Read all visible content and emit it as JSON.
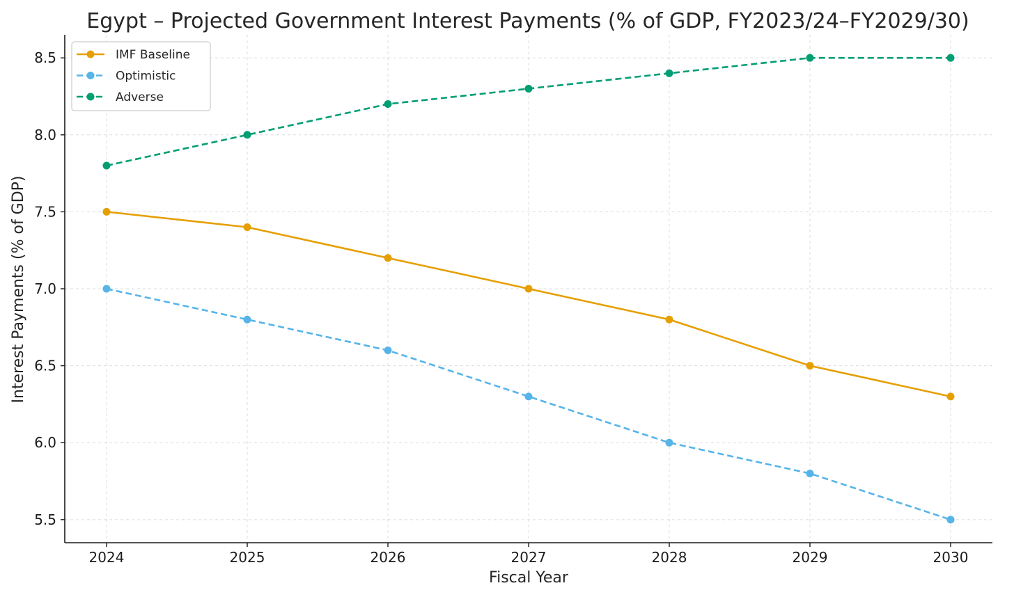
{
  "chart_data": {
    "type": "line",
    "title": "Egypt – Projected Government Interest Payments (% of GDP, FY2023/24–FY2029/30)",
    "xlabel": "Fiscal Year",
    "ylabel": "Interest Payments (% of GDP)",
    "x": [
      2024,
      2025,
      2026,
      2027,
      2028,
      2029,
      2030
    ],
    "x_tick_labels": [
      "2024",
      "2025",
      "2026",
      "2027",
      "2028",
      "2029",
      "2030"
    ],
    "ylim": [
      5.35,
      8.65
    ],
    "y_ticks": [
      5.5,
      6.0,
      6.5,
      7.0,
      7.5,
      8.0,
      8.5
    ],
    "y_tick_labels": [
      "5.5",
      "6.0",
      "6.5",
      "7.0",
      "7.5",
      "8.0",
      "8.5"
    ],
    "grid": true,
    "legend_position": "top-left",
    "series": [
      {
        "name": "IMF Baseline",
        "values": [
          7.5,
          7.4,
          7.2,
          7.0,
          6.8,
          6.5,
          6.3
        ],
        "color": "#E69F00",
        "style": "solid"
      },
      {
        "name": "Optimistic",
        "values": [
          7.0,
          6.8,
          6.6,
          6.3,
          6.0,
          5.8,
          5.5
        ],
        "color": "#56B4E9",
        "style": "dashed"
      },
      {
        "name": "Adverse",
        "values": [
          7.8,
          8.0,
          8.2,
          8.3,
          8.4,
          8.5,
          8.5
        ],
        "color": "#009E73",
        "style": "dashed"
      }
    ]
  }
}
